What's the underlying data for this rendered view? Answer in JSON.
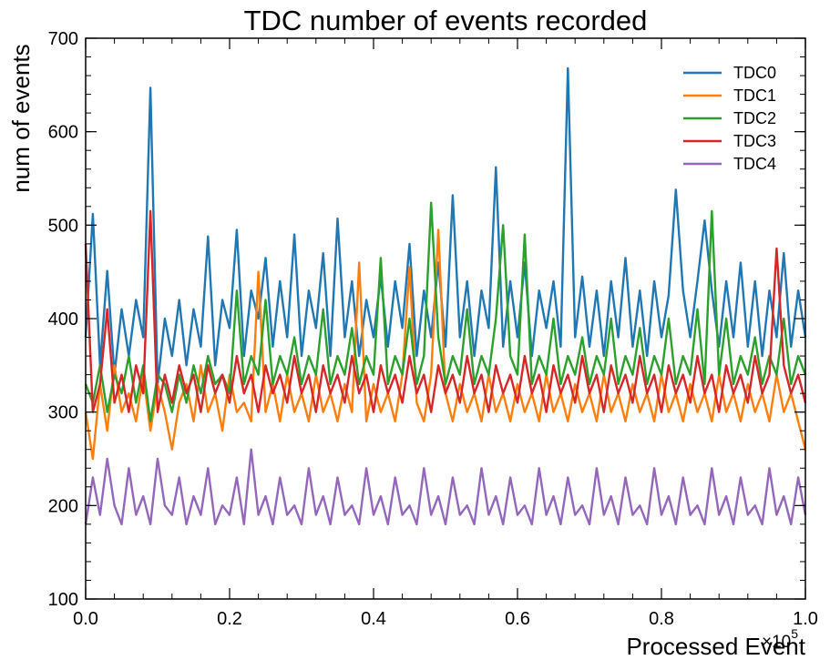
{
  "chart_data": {
    "type": "line",
    "title": "TDC number of events recorded",
    "xlabel": "Processed Event",
    "ylabel": "num of events",
    "x_multiplier_label": "×10",
    "x_multiplier_exponent": "5",
    "xlim": [
      0.0,
      1.0
    ],
    "ylim": [
      100,
      700
    ],
    "x_ticks": [
      0.0,
      0.2,
      0.4,
      0.6,
      0.8,
      1.0
    ],
    "x_tick_labels": [
      "0.0",
      "0.2",
      "0.4",
      "0.6",
      "0.8",
      "1.0"
    ],
    "y_ticks": [
      100,
      200,
      300,
      400,
      500,
      600,
      700
    ],
    "y_tick_labels": [
      "100",
      "200",
      "300",
      "400",
      "500",
      "600",
      "700"
    ],
    "legend_position": "top-right",
    "grid": false,
    "x": [
      0.0,
      0.01,
      0.02,
      0.03,
      0.04,
      0.05,
      0.06,
      0.07,
      0.08,
      0.09,
      0.1,
      0.11,
      0.12,
      0.13,
      0.14,
      0.15,
      0.16,
      0.17,
      0.18,
      0.19,
      0.2,
      0.21,
      0.22,
      0.23,
      0.24,
      0.25,
      0.26,
      0.27,
      0.28,
      0.29,
      0.3,
      0.31,
      0.32,
      0.33,
      0.34,
      0.35,
      0.36,
      0.37,
      0.38,
      0.39,
      0.4,
      0.41,
      0.42,
      0.43,
      0.44,
      0.45,
      0.46,
      0.47,
      0.48,
      0.49,
      0.5,
      0.51,
      0.52,
      0.53,
      0.54,
      0.55,
      0.56,
      0.57,
      0.58,
      0.59,
      0.6,
      0.61,
      0.62,
      0.63,
      0.64,
      0.65,
      0.66,
      0.67,
      0.68,
      0.69,
      0.7,
      0.71,
      0.72,
      0.73,
      0.74,
      0.75,
      0.76,
      0.77,
      0.78,
      0.79,
      0.8,
      0.81,
      0.82,
      0.83,
      0.84,
      0.85,
      0.86,
      0.87,
      0.88,
      0.89,
      0.9,
      0.91,
      0.92,
      0.93,
      0.94,
      0.95,
      0.96,
      0.97,
      0.98,
      0.99,
      1.0
    ],
    "series": [
      {
        "name": "TDC0",
        "color": "#1f77b4",
        "values": [
          380,
          512,
          350,
          451,
          340,
          410,
          360,
          420,
          380,
          647,
          330,
          400,
          360,
          420,
          350,
          410,
          370,
          488,
          350,
          420,
          390,
          495,
          360,
          430,
          400,
          465,
          370,
          440,
          380,
          490,
          360,
          430,
          390,
          470,
          360,
          507,
          380,
          440,
          360,
          420,
          380,
          445,
          370,
          440,
          390,
          480,
          360,
          430,
          380,
          460,
          370,
          532,
          380,
          440,
          360,
          430,
          390,
          562,
          370,
          440,
          380,
          460,
          360,
          430,
          390,
          440,
          370,
          668,
          380,
          445,
          370,
          430,
          360,
          440,
          380,
          465,
          370,
          430,
          360,
          440,
          380,
          425,
          538,
          430,
          380,
          440,
          505,
          430,
          370,
          440,
          380,
          460,
          370,
          440,
          360,
          430,
          380,
          470,
          370,
          430,
          380
        ]
      },
      {
        "name": "TDC1",
        "color": "#ff7f0e",
        "values": [
          300,
          250,
          330,
          280,
          350,
          300,
          320,
          290,
          340,
          280,
          330,
          300,
          260,
          310,
          330,
          290,
          350,
          300,
          320,
          280,
          340,
          300,
          310,
          290,
          450,
          300,
          330,
          290,
          340,
          300,
          320,
          290,
          340,
          300,
          320,
          290,
          330,
          300,
          460,
          290,
          330,
          300,
          320,
          290,
          340,
          455,
          310,
          290,
          340,
          495,
          320,
          290,
          330,
          300,
          320,
          290,
          340,
          300,
          320,
          290,
          330,
          300,
          320,
          290,
          340,
          300,
          320,
          290,
          330,
          300,
          320,
          290,
          340,
          300,
          320,
          290,
          330,
          300,
          320,
          290,
          340,
          300,
          320,
          290,
          330,
          300,
          320,
          290,
          340,
          300,
          320,
          290,
          330,
          300,
          320,
          290,
          340,
          300,
          320,
          290,
          260
        ]
      },
      {
        "name": "TDC2",
        "color": "#2ca02c",
        "values": [
          330,
          310,
          350,
          300,
          340,
          320,
          360,
          310,
          350,
          290,
          340,
          330,
          300,
          340,
          310,
          350,
          320,
          360,
          330,
          340,
          320,
          430,
          330,
          360,
          340,
          420,
          330,
          360,
          340,
          380,
          330,
          360,
          340,
          410,
          330,
          360,
          340,
          390,
          330,
          360,
          340,
          465,
          330,
          360,
          340,
          400,
          330,
          360,
          524,
          380,
          330,
          360,
          340,
          410,
          330,
          360,
          340,
          400,
          500,
          360,
          340,
          490,
          330,
          360,
          340,
          400,
          330,
          360,
          340,
          380,
          330,
          360,
          340,
          400,
          330,
          360,
          340,
          390,
          330,
          360,
          340,
          400,
          330,
          360,
          340,
          410,
          330,
          515,
          340,
          400,
          330,
          360,
          340,
          380,
          330,
          360,
          340,
          400,
          330,
          360,
          340
        ]
      },
      {
        "name": "TDC3",
        "color": "#d62728",
        "values": [
          480,
          300,
          330,
          410,
          310,
          340,
          300,
          350,
          320,
          515,
          300,
          340,
          310,
          350,
          320,
          340,
          300,
          350,
          320,
          340,
          310,
          360,
          320,
          340,
          300,
          350,
          320,
          340,
          310,
          360,
          320,
          340,
          300,
          350,
          320,
          340,
          310,
          360,
          320,
          340,
          300,
          350,
          320,
          340,
          310,
          360,
          320,
          340,
          300,
          350,
          320,
          340,
          310,
          360,
          320,
          340,
          300,
          350,
          320,
          340,
          310,
          360,
          320,
          340,
          300,
          350,
          320,
          340,
          310,
          360,
          320,
          340,
          300,
          350,
          320,
          340,
          310,
          360,
          320,
          340,
          300,
          350,
          320,
          340,
          310,
          360,
          320,
          340,
          300,
          350,
          320,
          340,
          310,
          360,
          320,
          340,
          475,
          350,
          320,
          340,
          310
        ]
      },
      {
        "name": "TDC4",
        "color": "#9467bd",
        "values": [
          180,
          230,
          190,
          250,
          200,
          180,
          240,
          190,
          210,
          180,
          250,
          200,
          190,
          230,
          180,
          210,
          190,
          240,
          180,
          200,
          190,
          230,
          180,
          260,
          190,
          210,
          180,
          230,
          190,
          200,
          180,
          240,
          190,
          210,
          180,
          230,
          190,
          200,
          180,
          240,
          190,
          210,
          180,
          230,
          190,
          200,
          180,
          240,
          190,
          210,
          180,
          230,
          190,
          200,
          180,
          240,
          190,
          210,
          180,
          230,
          190,
          200,
          180,
          240,
          190,
          210,
          180,
          230,
          190,
          200,
          180,
          240,
          190,
          210,
          180,
          230,
          190,
          200,
          180,
          240,
          190,
          210,
          180,
          230,
          190,
          200,
          180,
          240,
          190,
          210,
          180,
          230,
          190,
          200,
          180,
          240,
          190,
          210,
          180,
          230,
          190
        ]
      }
    ]
  }
}
